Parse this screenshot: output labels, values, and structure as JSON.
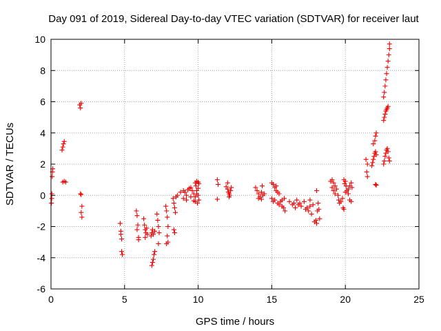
{
  "chart_data": {
    "type": "scatter",
    "title": "Day 091 of 2019, Sidereal Day-to-day VTEC variation (SDTVAR) for receiver laut",
    "xlabel": "GPS time / hours",
    "ylabel": "SDTVAR / TECUs",
    "xlim": [
      0,
      25
    ],
    "ylim": [
      -6,
      10
    ],
    "xticks": [
      "0",
      "5",
      "10",
      "15",
      "20",
      "25"
    ],
    "yticks": [
      "-6",
      "-4",
      "-2",
      "0",
      "2",
      "4",
      "6",
      "8",
      "10"
    ],
    "grid": true,
    "marker": "plus",
    "color": "#ee0000",
    "series": [
      {
        "name": "SDTVAR",
        "points": [
          [
            0.03,
            -0.5
          ],
          [
            0.05,
            -0.2
          ],
          [
            0.06,
            0.1
          ],
          [
            0.08,
            1.2
          ],
          [
            0.1,
            1.5
          ],
          [
            0.12,
            1.7
          ],
          [
            0.75,
            2.9
          ],
          [
            0.8,
            3.1
          ],
          [
            0.85,
            3.3
          ],
          [
            0.9,
            3.45
          ],
          [
            0.8,
            0.85
          ],
          [
            0.9,
            0.9
          ],
          [
            1.0,
            0.85
          ],
          [
            1.95,
            5.8
          ],
          [
            2.0,
            5.6
          ],
          [
            2.05,
            5.9
          ],
          [
            2.0,
            0.1
          ],
          [
            2.05,
            0.05
          ],
          [
            2.1,
            -0.7
          ],
          [
            2.05,
            -1.1
          ],
          [
            2.1,
            -1.4
          ],
          [
            4.7,
            -1.8
          ],
          [
            4.75,
            -2.3
          ],
          [
            4.8,
            -2.8
          ],
          [
            4.8,
            -3.6
          ],
          [
            4.85,
            -3.8
          ],
          [
            4.75,
            -2.5
          ],
          [
            5.8,
            -1.0
          ],
          [
            5.85,
            -1.3
          ],
          [
            5.9,
            -1.9
          ],
          [
            5.85,
            -2.2
          ],
          [
            5.95,
            -2.7
          ],
          [
            5.95,
            -2.85
          ],
          [
            6.3,
            -1.5
          ],
          [
            6.35,
            -1.9
          ],
          [
            6.4,
            -2.2
          ],
          [
            6.45,
            -2.4
          ],
          [
            6.4,
            -2.7
          ],
          [
            6.5,
            -2.1
          ],
          [
            6.55,
            -2.5
          ],
          [
            6.8,
            -2.6
          ],
          [
            6.85,
            -2.4
          ],
          [
            6.9,
            -2.2
          ],
          [
            6.95,
            -2.5
          ],
          [
            7.05,
            -2.3
          ],
          [
            6.85,
            -4.5
          ],
          [
            6.9,
            -4.3
          ],
          [
            6.95,
            -4.1
          ],
          [
            7.0,
            -3.8
          ],
          [
            7.05,
            -3.6
          ],
          [
            7.2,
            -1.2
          ],
          [
            7.25,
            -1.6
          ],
          [
            7.3,
            -2.0
          ],
          [
            7.35,
            -2.4
          ],
          [
            7.3,
            -3.1
          ],
          [
            7.8,
            -0.7
          ],
          [
            7.85,
            -1.0
          ],
          [
            7.9,
            -1.4
          ],
          [
            7.95,
            -2.0
          ],
          [
            7.9,
            -2.6
          ],
          [
            7.85,
            -3.1
          ],
          [
            7.95,
            -3.0
          ],
          [
            8.3,
            -0.2
          ],
          [
            8.35,
            -0.5
          ],
          [
            8.4,
            -0.8
          ],
          [
            8.45,
            -1.1
          ],
          [
            8.35,
            -2.2
          ],
          [
            8.4,
            -2.4
          ],
          [
            8.5,
            -0.1
          ],
          [
            8.6,
            0.0
          ],
          [
            8.8,
            0.2
          ],
          [
            9.0,
            0.3
          ],
          [
            9.1,
            0.2
          ],
          [
            9.2,
            0.0
          ],
          [
            9.3,
            0.35
          ],
          [
            9.4,
            0.45
          ],
          [
            9.5,
            0.5
          ],
          [
            9.6,
            0.3
          ],
          [
            9.7,
            0.1
          ],
          [
            9.8,
            -0.1
          ],
          [
            9.0,
            -0.2
          ],
          [
            9.2,
            -0.3
          ],
          [
            9.5,
            -0.1
          ],
          [
            9.7,
            -0.35
          ],
          [
            9.8,
            -0.4
          ],
          [
            9.9,
            0.1
          ],
          [
            9.95,
            -0.5
          ],
          [
            10.0,
            0.0
          ],
          [
            10.05,
            -0.3
          ],
          [
            9.8,
            0.8
          ],
          [
            9.9,
            0.9
          ],
          [
            10.0,
            0.85
          ],
          [
            10.05,
            0.75
          ],
          [
            9.85,
            0.6
          ],
          [
            9.9,
            0.3
          ],
          [
            10.0,
            0.45
          ],
          [
            11.3,
            1.0
          ],
          [
            11.35,
            0.7
          ],
          [
            11.3,
            -0.25
          ],
          [
            11.9,
            0.55
          ],
          [
            12.0,
            0.4
          ],
          [
            12.05,
            0.2
          ],
          [
            12.1,
            0.1
          ],
          [
            12.15,
            0.0
          ],
          [
            12.2,
            0.3
          ],
          [
            12.25,
            0.5
          ],
          [
            12.0,
            0.8
          ],
          [
            12.1,
            -0.1
          ],
          [
            13.9,
            0.5
          ],
          [
            14.0,
            0.3
          ],
          [
            14.1,
            0.1
          ],
          [
            14.2,
            -0.1
          ],
          [
            14.3,
            0.2
          ],
          [
            14.4,
            0.0
          ],
          [
            14.35,
            0.6
          ],
          [
            14.1,
            -0.2
          ],
          [
            14.3,
            -0.25
          ],
          [
            14.5,
            0.1
          ],
          [
            15.0,
            0.8
          ],
          [
            15.1,
            0.7
          ],
          [
            15.2,
            0.5
          ],
          [
            15.3,
            0.3
          ],
          [
            15.4,
            0.2
          ],
          [
            15.5,
            0.1
          ],
          [
            15.3,
            0.6
          ],
          [
            15.0,
            -0.2
          ],
          [
            15.1,
            -0.4
          ],
          [
            15.2,
            -0.3
          ],
          [
            15.4,
            -0.5
          ],
          [
            15.5,
            -0.6
          ],
          [
            15.6,
            -0.4
          ],
          [
            15.7,
            -0.7
          ],
          [
            15.8,
            -0.8
          ],
          [
            15.9,
            -1.0
          ],
          [
            15.7,
            -0.3
          ],
          [
            15.85,
            -0.2
          ],
          [
            16.2,
            -0.4
          ],
          [
            16.4,
            -0.6
          ],
          [
            16.5,
            -0.5
          ],
          [
            16.6,
            -0.8
          ],
          [
            16.7,
            -0.3
          ],
          [
            16.8,
            -0.6
          ],
          [
            16.9,
            -0.5
          ],
          [
            17.0,
            -0.7
          ],
          [
            17.2,
            -0.4
          ],
          [
            17.3,
            -0.9
          ],
          [
            17.4,
            -0.8
          ],
          [
            17.5,
            -1.0
          ],
          [
            17.6,
            -0.7
          ],
          [
            17.7,
            -1.2
          ],
          [
            17.8,
            -0.6
          ],
          [
            17.6,
            -0.3
          ],
          [
            17.9,
            -1.7
          ],
          [
            18.0,
            -1.6
          ],
          [
            18.05,
            -1.8
          ],
          [
            18.1,
            -1.0
          ],
          [
            18.15,
            -0.5
          ],
          [
            18.2,
            -0.9
          ],
          [
            18.25,
            -1.5
          ],
          [
            18.05,
            0.3
          ],
          [
            19.0,
            0.9
          ],
          [
            19.1,
            1.0
          ],
          [
            19.2,
            0.8
          ],
          [
            19.3,
            0.6
          ],
          [
            19.2,
            0.3
          ],
          [
            19.3,
            0.1
          ],
          [
            19.4,
            0.4
          ],
          [
            19.1,
            0.5
          ],
          [
            19.5,
            0.0
          ],
          [
            19.55,
            -0.3
          ],
          [
            19.6,
            -0.5
          ],
          [
            19.7,
            -0.4
          ],
          [
            19.8,
            -0.2
          ],
          [
            19.9,
            1.0
          ],
          [
            20.0,
            0.9
          ],
          [
            19.95,
            0.75
          ],
          [
            20.05,
            0.6
          ],
          [
            20.1,
            0.3
          ],
          [
            19.85,
            -0.8
          ],
          [
            19.9,
            -0.9
          ],
          [
            20.0,
            0.2
          ],
          [
            20.2,
            0.1
          ],
          [
            20.3,
            -0.3
          ],
          [
            20.4,
            -0.4
          ],
          [
            20.2,
            0.4
          ],
          [
            20.3,
            0.6
          ],
          [
            20.4,
            0.8
          ],
          [
            20.45,
            0.5
          ],
          [
            21.4,
            2.3
          ],
          [
            21.5,
            2.0
          ],
          [
            21.45,
            1.5
          ],
          [
            21.5,
            1.2
          ],
          [
            21.8,
            1.9
          ],
          [
            21.85,
            2.1
          ],
          [
            21.9,
            2.3
          ],
          [
            21.95,
            2.5
          ],
          [
            22.0,
            2.7
          ],
          [
            22.05,
            2.8
          ],
          [
            22.1,
            2.6
          ],
          [
            21.9,
            3.3
          ],
          [
            22.0,
            3.5
          ],
          [
            22.05,
            3.8
          ],
          [
            22.1,
            4.0
          ],
          [
            22.05,
            0.7
          ],
          [
            22.1,
            0.65
          ],
          [
            22.6,
            2.0
          ],
          [
            22.65,
            2.2
          ],
          [
            22.7,
            2.5
          ],
          [
            22.75,
            2.7
          ],
          [
            22.8,
            2.9
          ],
          [
            22.85,
            3.0
          ],
          [
            22.9,
            2.8
          ],
          [
            22.95,
            2.4
          ],
          [
            23.0,
            2.2
          ],
          [
            22.6,
            4.8
          ],
          [
            22.65,
            5.0
          ],
          [
            22.7,
            5.2
          ],
          [
            22.75,
            5.4
          ],
          [
            22.8,
            5.5
          ],
          [
            22.85,
            5.6
          ],
          [
            22.9,
            5.7
          ],
          [
            22.6,
            6.3
          ],
          [
            22.65,
            6.6
          ],
          [
            22.7,
            7.0
          ],
          [
            22.75,
            7.4
          ],
          [
            22.8,
            7.8
          ],
          [
            22.85,
            8.2
          ],
          [
            22.9,
            8.6
          ],
          [
            22.95,
            9.0
          ],
          [
            23.0,
            9.4
          ],
          [
            23.0,
            9.7
          ]
        ]
      }
    ]
  }
}
